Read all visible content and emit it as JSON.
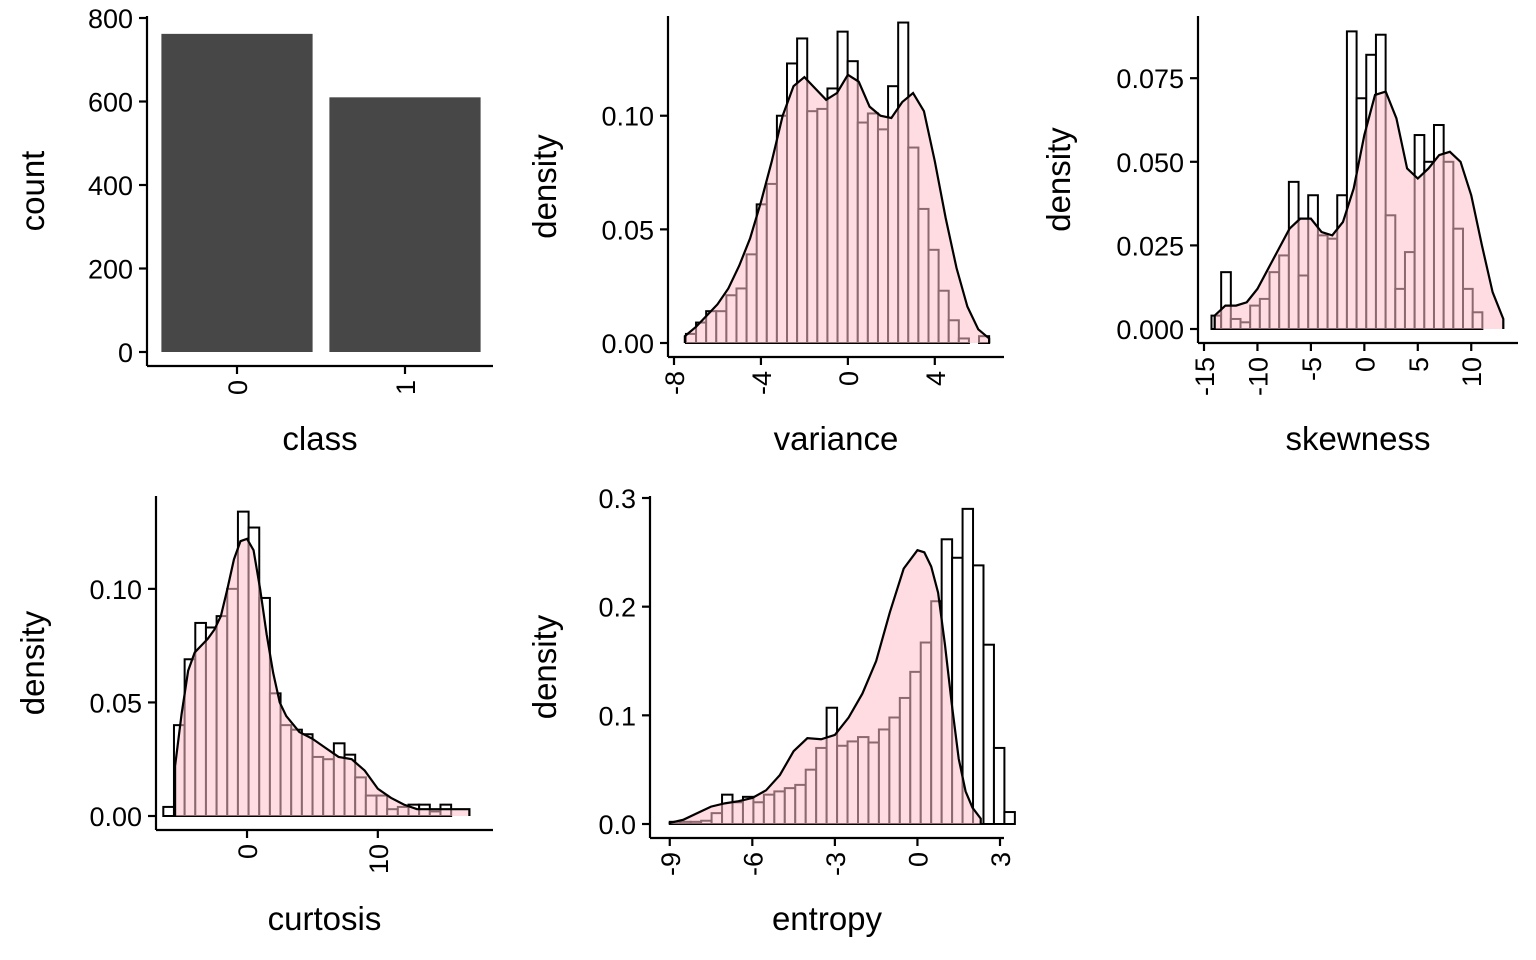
{
  "chart_data": [
    {
      "type": "bar",
      "xlabel": "class",
      "ylabel": "count",
      "categories": [
        "0",
        "1"
      ],
      "values": [
        762,
        610
      ],
      "ylim": [
        0,
        800
      ],
      "yticks": [
        0,
        200,
        400,
        600,
        800
      ],
      "ytick_labels": [
        "0",
        "200",
        "400",
        "600",
        "800"
      ],
      "xtick_rotation": -90,
      "color": "#474747"
    },
    {
      "type": "histogram_density",
      "xlabel": "variance",
      "ylabel": "density",
      "xlim": [
        -8,
        7
      ],
      "ylim": [
        0,
        0.143
      ],
      "xticks": [
        -8,
        -4,
        0,
        4
      ],
      "xtick_labels": [
        "-8",
        "-4",
        "0",
        "4"
      ],
      "yticks": [
        0,
        0.05,
        0.1
      ],
      "ytick_labels": [
        "0.00",
        "0.05",
        "0.10"
      ],
      "bins": {
        "start": -7.45,
        "width": 0.465,
        "values": [
          0.004,
          0.009,
          0.014,
          0.014,
          0.021,
          0.024,
          0.039,
          0.061,
          0.07,
          0.1,
          0.123,
          0.134,
          0.102,
          0.103,
          0.112,
          0.137,
          0.124,
          0.097,
          0.101,
          0.094,
          0.113,
          0.141,
          0.086,
          0.059,
          0.041,
          0.023,
          0.01,
          0.002,
          0.0,
          0.003
        ]
      },
      "density": {
        "x": [
          -7.5,
          -7,
          -6.5,
          -6,
          -5.5,
          -5,
          -4.5,
          -4,
          -3.5,
          -3,
          -2.5,
          -2,
          -1.5,
          -1,
          -0.5,
          0,
          0.5,
          1,
          1.5,
          2,
          2.5,
          3,
          3.5,
          4,
          4.5,
          5,
          5.5,
          6,
          6.5
        ],
        "y": [
          0.003,
          0.007,
          0.012,
          0.017,
          0.024,
          0.034,
          0.046,
          0.062,
          0.08,
          0.1,
          0.113,
          0.117,
          0.112,
          0.107,
          0.11,
          0.118,
          0.115,
          0.104,
          0.1,
          0.099,
          0.106,
          0.11,
          0.102,
          0.08,
          0.055,
          0.033,
          0.016,
          0.006,
          0.002
        ]
      },
      "fill_color": "#ffc0cb"
    },
    {
      "type": "histogram_density",
      "xlabel": "skewness",
      "ylabel": "density",
      "xlim": [
        -15,
        14
      ],
      "ylim": [
        0,
        0.093
      ],
      "xticks": [
        -15,
        -10,
        -5,
        0,
        5,
        10
      ],
      "xtick_labels": [
        "-15",
        "-10",
        "-5",
        "0",
        "5",
        "10"
      ],
      "yticks": [
        0,
        0.025,
        0.05,
        0.075
      ],
      "ytick_labels": [
        "0.000",
        "0.025",
        "0.050",
        "0.075"
      ],
      "bins": {
        "start": -14.3,
        "width": 0.905,
        "values": [
          0.004,
          0.017,
          0.003,
          0.002,
          0.007,
          0.009,
          0.017,
          0.022,
          0.044,
          0.016,
          0.04,
          0.028,
          0.027,
          0.04,
          0.089,
          0.069,
          0.082,
          0.088,
          0.034,
          0.012,
          0.023,
          0.058,
          0.05,
          0.061,
          0.05,
          0.03,
          0.012,
          0.005
        ]
      },
      "density": {
        "x": [
          -14,
          -13,
          -12,
          -11,
          -10,
          -9,
          -8,
          -7,
          -6,
          -5,
          -4,
          -3,
          -2,
          -1,
          0,
          1,
          2,
          3,
          4,
          5,
          6,
          7,
          8,
          9,
          10,
          11,
          12,
          13
        ],
        "y": [
          0.004,
          0.007,
          0.007,
          0.008,
          0.012,
          0.018,
          0.024,
          0.03,
          0.033,
          0.033,
          0.029,
          0.028,
          0.032,
          0.042,
          0.058,
          0.07,
          0.071,
          0.063,
          0.048,
          0.045,
          0.048,
          0.052,
          0.053,
          0.05,
          0.04,
          0.025,
          0.011,
          0.003
        ]
      },
      "fill_color": "#ffc0cb"
    },
    {
      "type": "histogram_density",
      "xlabel": "curtosis",
      "ylabel": "density",
      "xlim": [
        -6.5,
        18.5
      ],
      "ylim": [
        0,
        0.14
      ],
      "xticks": [
        0,
        10
      ],
      "xtick_labels": [
        "0",
        "10"
      ],
      "yticks": [
        0,
        0.05,
        0.1
      ],
      "ytick_labels": [
        "0.00",
        "0.05",
        "0.10"
      ],
      "bins": {
        "start": -6.4,
        "width": 0.815,
        "values": [
          0.004,
          0.04,
          0.069,
          0.085,
          0.083,
          0.088,
          0.1,
          0.134,
          0.127,
          0.096,
          0.054,
          0.04,
          0.038,
          0.036,
          0.026,
          0.025,
          0.032,
          0.027,
          0.017,
          0.009,
          0.009,
          0.003,
          0.004,
          0.005,
          0.005,
          0.002,
          0.005
        ]
      },
      "density": {
        "x": [
          -5.5,
          -5,
          -4.5,
          -4,
          -3.5,
          -3,
          -2.5,
          -2,
          -1.5,
          -1,
          -0.5,
          0,
          0.5,
          1,
          1.5,
          2,
          2.5,
          3,
          4,
          5,
          6,
          7,
          8,
          9,
          10,
          11,
          12,
          13,
          14,
          15,
          16,
          17
        ],
        "y": [
          0.022,
          0.045,
          0.064,
          0.072,
          0.075,
          0.078,
          0.082,
          0.088,
          0.1,
          0.113,
          0.121,
          0.122,
          0.117,
          0.1,
          0.08,
          0.063,
          0.05,
          0.044,
          0.037,
          0.034,
          0.03,
          0.026,
          0.025,
          0.02,
          0.012,
          0.008,
          0.005,
          0.003,
          0.003,
          0.003,
          0.003,
          0.003
        ]
      },
      "fill_color": "#ffc0cb"
    },
    {
      "type": "histogram_density",
      "xlabel": "entropy",
      "ylabel": "density",
      "xlim": [
        -9.5,
        3
      ],
      "ylim": [
        0,
        0.3
      ],
      "xticks": [
        -9,
        -6,
        -3,
        0,
        3
      ],
      "xtick_labels": [
        "-9",
        "-6",
        "-3",
        "0",
        "3"
      ],
      "yticks": [
        0,
        0.1,
        0.2,
        0.3
      ],
      "ytick_labels": [
        "0.0",
        "0.1",
        "0.2",
        "0.3"
      ],
      "bins": {
        "start": -9.0,
        "width": 0.38,
        "values": [
          0.002,
          0.002,
          0.002,
          0.003,
          0.01,
          0.027,
          0.02,
          0.025,
          0.02,
          0.027,
          0.03,
          0.033,
          0.036,
          0.05,
          0.07,
          0.107,
          0.072,
          0.076,
          0.08,
          0.075,
          0.087,
          0.098,
          0.116,
          0.14,
          0.167,
          0.205,
          0.262,
          0.245,
          0.29,
          0.238,
          0.165,
          0.07,
          0.011
        ]
      },
      "density": {
        "x": [
          -9,
          -8.5,
          -8,
          -7.5,
          -7,
          -6.5,
          -6,
          -5.5,
          -5,
          -4.5,
          -4,
          -3.5,
          -3,
          -2.5,
          -2,
          -1.5,
          -1,
          -0.5,
          0,
          0.25,
          0.5,
          0.75,
          1,
          1.25,
          1.5,
          1.75,
          2,
          2.3
        ],
        "y": [
          0.001,
          0.004,
          0.01,
          0.016,
          0.019,
          0.021,
          0.024,
          0.031,
          0.045,
          0.067,
          0.079,
          0.078,
          0.082,
          0.098,
          0.12,
          0.15,
          0.195,
          0.235,
          0.252,
          0.25,
          0.237,
          0.213,
          0.165,
          0.11,
          0.06,
          0.03,
          0.015,
          0.005
        ]
      },
      "fill_color": "#ffc0cb"
    }
  ]
}
